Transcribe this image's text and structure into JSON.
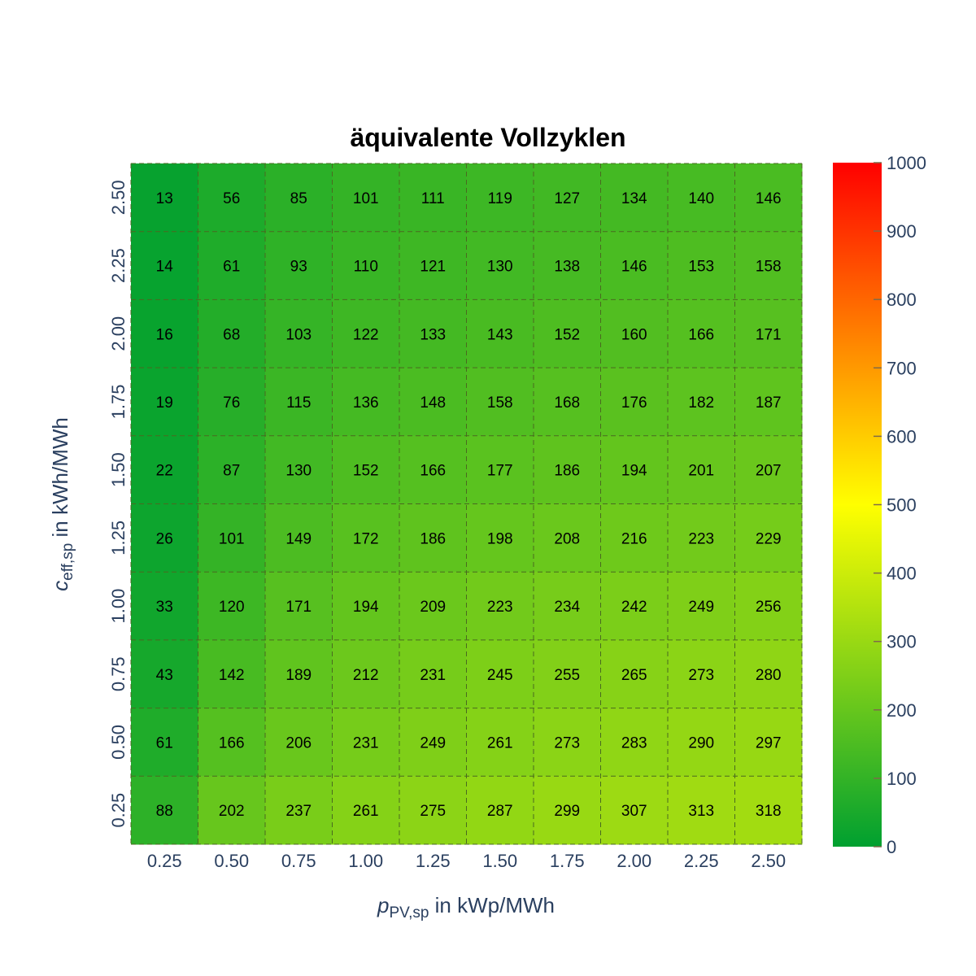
{
  "chart_data": {
    "type": "heatmap",
    "title": "äquivalente Vollzyklen",
    "xlabel": {
      "main": "p",
      "sub": "PV,sp",
      "unit": " in kWp/MWh"
    },
    "ylabel": {
      "main": "c",
      "sub": "eff,sp",
      "unit": " in kWh/MWh"
    },
    "x": [
      "0.25",
      "0.50",
      "0.75",
      "1.00",
      "1.25",
      "1.50",
      "1.75",
      "2.00",
      "2.25",
      "2.50"
    ],
    "y": [
      "2.50",
      "2.25",
      "2.00",
      "1.75",
      "1.50",
      "1.25",
      "1.00",
      "0.75",
      "0.50",
      "0.25"
    ],
    "z": [
      [
        13,
        56,
        85,
        101,
        111,
        119,
        127,
        134,
        140,
        146
      ],
      [
        14,
        61,
        93,
        110,
        121,
        130,
        138,
        146,
        153,
        158
      ],
      [
        16,
        68,
        103,
        122,
        133,
        143,
        152,
        160,
        166,
        171
      ],
      [
        19,
        76,
        115,
        136,
        148,
        158,
        168,
        176,
        182,
        187
      ],
      [
        22,
        87,
        130,
        152,
        166,
        177,
        186,
        194,
        201,
        207
      ],
      [
        26,
        101,
        149,
        172,
        186,
        198,
        208,
        216,
        223,
        229
      ],
      [
        33,
        120,
        171,
        194,
        209,
        223,
        234,
        242,
        249,
        256
      ],
      [
        43,
        142,
        189,
        212,
        231,
        245,
        255,
        265,
        273,
        280
      ],
      [
        61,
        166,
        206,
        231,
        249,
        261,
        273,
        283,
        290,
        297
      ],
      [
        88,
        202,
        237,
        261,
        275,
        287,
        299,
        307,
        313,
        318
      ]
    ],
    "zmin": 0,
    "zmax": 1000,
    "colorscale": [
      [
        0.0,
        "#00a030"
      ],
      [
        0.5,
        "#ffff00"
      ],
      [
        1.0,
        "#ff0000"
      ]
    ],
    "colorbar": {
      "ticks": [
        "0",
        "100",
        "200",
        "300",
        "400",
        "500",
        "600",
        "700",
        "800",
        "900",
        "1000"
      ]
    }
  }
}
